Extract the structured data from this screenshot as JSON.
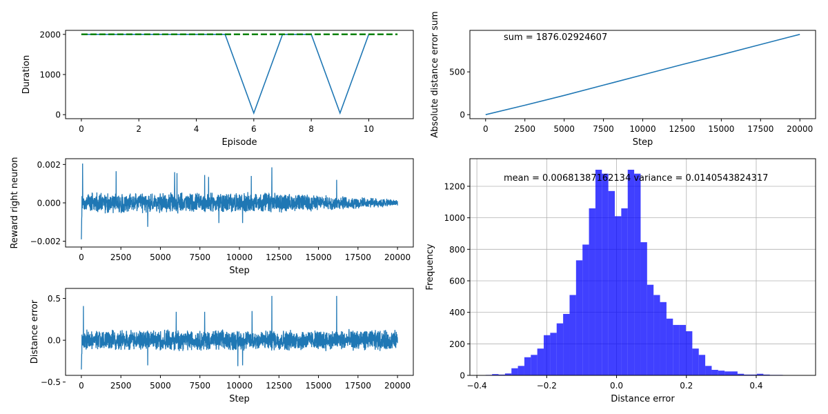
{
  "colors": {
    "line": "#1f77b4",
    "target_dash": "#008000",
    "hist_fill": "#0000ff",
    "axes": "#000000",
    "grid": "#b0b0b0"
  },
  "chart_data": [
    {
      "id": "episode-duration",
      "type": "line",
      "xlabel": "Episode",
      "ylabel": "Duration",
      "xlim": [
        -0.55,
        11.55
      ],
      "ylim": [
        -100,
        2100
      ],
      "xticks": [
        0,
        2,
        4,
        6,
        8,
        10
      ],
      "yticks": [
        0,
        1000,
        2000
      ],
      "series": [
        {
          "style": "solid",
          "x": [
            0,
            1,
            2,
            3,
            4,
            5,
            6,
            7,
            8,
            9,
            10
          ],
          "y": [
            2000,
            2000,
            2000,
            2000,
            2000,
            2000,
            40,
            2000,
            2000,
            40,
            2000
          ]
        },
        {
          "style": "dashed",
          "x": [
            0,
            11
          ],
          "y": [
            2000,
            2000
          ]
        }
      ]
    },
    {
      "id": "abs-error-sum",
      "type": "line",
      "xlabel": "Step",
      "ylabel": "Absolute distance error sum",
      "annotation": "sum = 1876.02924607",
      "xlim": [
        -1000,
        21000
      ],
      "ylim": [
        -47,
        985
      ],
      "xticks": [
        0,
        2500,
        5000,
        7500,
        10000,
        12500,
        15000,
        17500,
        20000
      ],
      "yticks": [
        0,
        500
      ],
      "series": [
        {
          "x": [
            0,
            2500,
            5000,
            7500,
            10000,
            12500,
            15000,
            17500,
            20000
          ],
          "y": [
            0,
            110,
            225,
            345,
            465,
            585,
            700,
            820,
            938
          ]
        }
      ]
    },
    {
      "id": "reward-right-neuron",
      "type": "line",
      "xlabel": "Step",
      "ylabel": "Reward right neuron",
      "xlim": [
        -1000,
        21000
      ],
      "ylim": [
        -0.0023,
        0.0023
      ],
      "xticks": [
        0,
        2500,
        5000,
        7500,
        10000,
        12500,
        15000,
        17500,
        20000
      ],
      "yticks": [
        -0.002,
        0.0,
        0.002
      ],
      "ytick_labels": [
        "−0.002",
        "0.000",
        "0.002"
      ],
      "generated": {
        "n": 2000,
        "x_end": 20000,
        "start": -0.0019,
        "noise": 0.00042,
        "decay_to": 0.35,
        "spikes": [
          [
            80,
            0.00205
          ],
          [
            2200,
            0.00165
          ],
          [
            5900,
            0.0016
          ],
          [
            6050,
            0.00155
          ],
          [
            7800,
            0.00145
          ],
          [
            8050,
            0.00135
          ],
          [
            10750,
            0.0014
          ],
          [
            12050,
            0.00185
          ],
          [
            16150,
            0.0012
          ],
          [
            4200,
            -0.00125
          ],
          [
            8700,
            -0.00105
          ],
          [
            10200,
            -0.00105
          ]
        ]
      }
    },
    {
      "id": "distance-error",
      "type": "line",
      "xlabel": "Step",
      "ylabel": "Distance error",
      "xlim": [
        -1000,
        21000
      ],
      "ylim": [
        -0.42,
        0.62
      ],
      "xticks": [
        0,
        2500,
        5000,
        7500,
        10000,
        12500,
        15000,
        17500,
        20000
      ],
      "yticks": [
        -0.5,
        0.0,
        0.5
      ],
      "ytick_labels": [
        "−0.5",
        "0.0",
        "0.5"
      ],
      "generated": {
        "n": 2000,
        "x_end": 20000,
        "start": -0.35,
        "noise": 0.1,
        "decay_to": 1,
        "spikes": [
          [
            130,
            0.41
          ],
          [
            4200,
            0.35
          ],
          [
            6000,
            0.34
          ],
          [
            7800,
            0.34
          ],
          [
            12050,
            0.53
          ],
          [
            16150,
            0.53
          ],
          [
            10800,
            0.35
          ],
          [
            4200,
            -0.3
          ],
          [
            9900,
            -0.31
          ],
          [
            10200,
            -0.3
          ]
        ]
      }
    },
    {
      "id": "distance-error-histogram",
      "type": "bar",
      "xlabel": "Distance error",
      "ylabel": "Frequency",
      "annotation": "mean = 0.00681387162134 variance = 0.0140543824317",
      "grid": true,
      "xlim": [
        -0.42,
        0.57
      ],
      "ylim": [
        0,
        1375
      ],
      "xticks": [
        -0.4,
        -0.2,
        0.0,
        0.2,
        0.4
      ],
      "xtick_labels": [
        "−0.4",
        "−0.2",
        "0.0",
        "0.2",
        "0.4"
      ],
      "yticks": [
        0,
        200,
        400,
        600,
        800,
        1000,
        1200
      ],
      "bin_start": -0.375,
      "bin_width": 0.0185,
      "values": [
        3,
        8,
        5,
        12,
        45,
        60,
        115,
        130,
        170,
        255,
        270,
        330,
        390,
        510,
        730,
        830,
        1060,
        1305,
        1280,
        1170,
        1010,
        1060,
        1305,
        1280,
        845,
        575,
        510,
        465,
        360,
        320,
        320,
        280,
        170,
        130,
        60,
        35,
        30,
        25,
        25,
        10,
        5,
        5,
        10,
        5,
        3,
        3
      ]
    }
  ]
}
